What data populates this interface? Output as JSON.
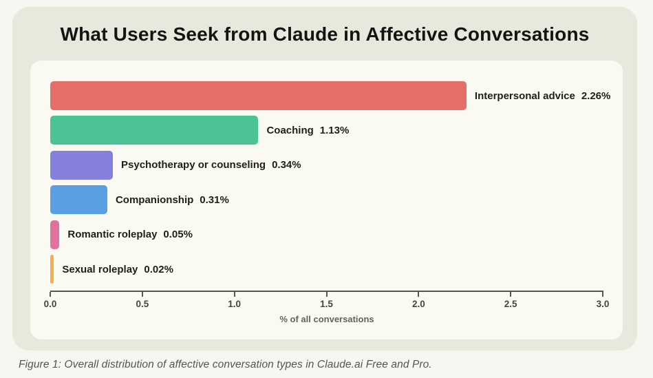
{
  "page": {
    "title": "What Users Seek from Claude in Affective Conversations",
    "caption": "Figure 1: Overall distribution of affective conversation types in Claude.ai Free and Pro."
  },
  "chart_data": {
    "type": "bar",
    "orientation": "horizontal",
    "title": "What Users Seek from Claude in Affective Conversations",
    "categories": [
      "Interpersonal advice",
      "Coaching",
      "Psychotherapy or counseling",
      "Companionship",
      "Romantic roleplay",
      "Sexual roleplay"
    ],
    "values": [
      2.26,
      1.13,
      0.34,
      0.31,
      0.05,
      0.02
    ],
    "value_labels": [
      "2.26%",
      "1.13%",
      "0.34%",
      "0.31%",
      "0.05%",
      "0.02%"
    ],
    "bar_colors": [
      "#e46e68",
      "#4cc394",
      "#8680dd",
      "#59a0e2",
      "#e2719f",
      "#f2b04e"
    ],
    "xlabel": "% of all conversations",
    "xlim": [
      0,
      3
    ],
    "x_ticks": [
      0.0,
      0.5,
      1.0,
      1.5,
      2.0,
      2.5,
      3.0
    ],
    "x_tick_labels": [
      "0.0",
      "0.5",
      "1.0",
      "1.5",
      "2.0",
      "2.5",
      "3.0"
    ],
    "grid": false,
    "legend": "none"
  },
  "colors": {
    "outer_bg": "#f8f6f1",
    "card_bg": "#e9e8dd",
    "panel_bg": "#faf9f2",
    "axis": "#57564e",
    "tick_label_text": "#45443e",
    "bar_label_text": "#21201d",
    "title_text": "#141413",
    "caption_text": "#55544e"
  }
}
